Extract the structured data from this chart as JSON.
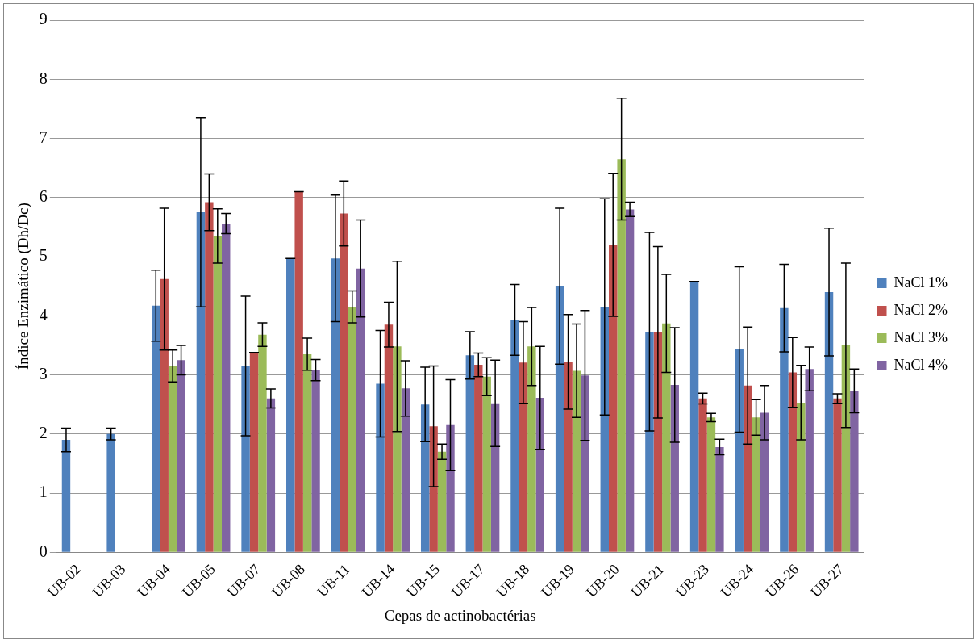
{
  "chart_data": {
    "type": "bar",
    "xlabel": "Cepas de actinobactérias",
    "ylabel": "Índice Enzimático (Dh/Dc)",
    "categories": [
      "UB-02",
      "UB-03",
      "UB-04",
      "UB-05",
      "UB-07",
      "UB-08",
      "UB-11",
      "UB-14",
      "UB-15",
      "UB-17",
      "UB-18",
      "UB-19",
      "UB-20",
      "UB-21",
      "UB-23",
      "UB-24",
      "UB-26",
      "UB-27"
    ],
    "series": [
      {
        "name": "NaCl 1%",
        "color": "#4f81bd",
        "values": [
          1.9,
          2.0,
          4.17,
          5.75,
          3.15,
          4.97,
          4.97,
          2.85,
          2.5,
          3.33,
          3.93,
          4.5,
          4.15,
          3.73,
          4.58,
          3.43,
          4.13,
          4.4
        ],
        "errors": [
          0.2,
          0.1,
          0.6,
          1.6,
          1.18,
          0,
          1.07,
          0.9,
          0.63,
          0.4,
          0.6,
          1.32,
          1.83,
          1.68,
          0,
          1.4,
          0.74,
          1.08
        ]
      },
      {
        "name": "NaCl 2%",
        "color": "#c0504d",
        "values": [
          null,
          null,
          4.62,
          5.92,
          3.38,
          6.1,
          5.73,
          3.85,
          2.13,
          3.17,
          3.21,
          3.22,
          5.2,
          3.72,
          2.6,
          2.82,
          3.04,
          2.6
        ],
        "errors": [
          null,
          null,
          1.2,
          0.48,
          0,
          0,
          0.55,
          0.38,
          1.02,
          0.2,
          0.69,
          0.8,
          1.21,
          1.45,
          0.09,
          0.99,
          0.59,
          0.08
        ]
      },
      {
        "name": "NaCl 3%",
        "color": "#9bbb59",
        "values": [
          null,
          null,
          3.15,
          5.35,
          3.68,
          3.35,
          4.15,
          3.48,
          1.7,
          2.97,
          3.48,
          3.07,
          6.65,
          3.87,
          2.28,
          2.28,
          2.53,
          3.5
        ],
        "errors": [
          null,
          null,
          0.27,
          0.46,
          0.2,
          0.27,
          0.27,
          1.44,
          0.13,
          0.32,
          0.66,
          0.79,
          1.03,
          0.83,
          0.07,
          0.3,
          0.63,
          1.39
        ]
      },
      {
        "name": "NaCl 4%",
        "color": "#8064a2",
        "values": [
          null,
          null,
          3.25,
          5.56,
          2.6,
          3.08,
          4.8,
          2.77,
          2.15,
          2.52,
          2.61,
          2.99,
          5.8,
          2.83,
          1.78,
          2.36,
          3.1,
          2.73
        ],
        "errors": [
          null,
          null,
          0.25,
          0.17,
          0.16,
          0.18,
          0.82,
          0.47,
          0.77,
          0.73,
          0.87,
          1.1,
          0.12,
          0.97,
          0.13,
          0.46,
          0.37,
          0.37
        ]
      }
    ],
    "ylim": [
      0,
      9
    ],
    "yticks": [
      0,
      1,
      2,
      3,
      4,
      5,
      6,
      7,
      8,
      9
    ],
    "grid": "y",
    "legend": "right"
  }
}
